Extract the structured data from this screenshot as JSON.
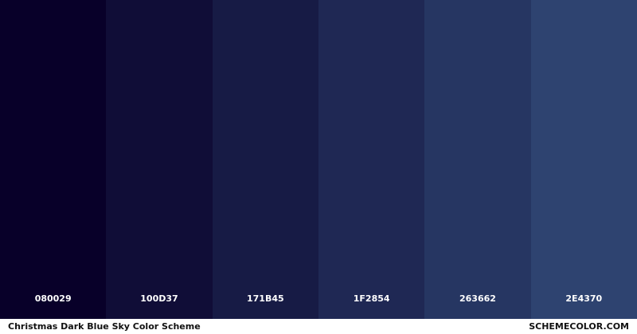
{
  "colors": [
    {
      "hex": "#080029",
      "label": "080029"
    },
    {
      "hex": "#100D37",
      "label": "100D37"
    },
    {
      "hex": "#171B45",
      "label": "171B45"
    },
    {
      "hex": "#1F2854",
      "label": "1F2854"
    },
    {
      "hex": "#263662",
      "label": "263662"
    },
    {
      "hex": "#2E4370",
      "label": "2E4370"
    }
  ],
  "footer": {
    "title": "Christmas Dark Blue Sky Color Scheme",
    "site": "SCHEMECOLOR.COM"
  }
}
